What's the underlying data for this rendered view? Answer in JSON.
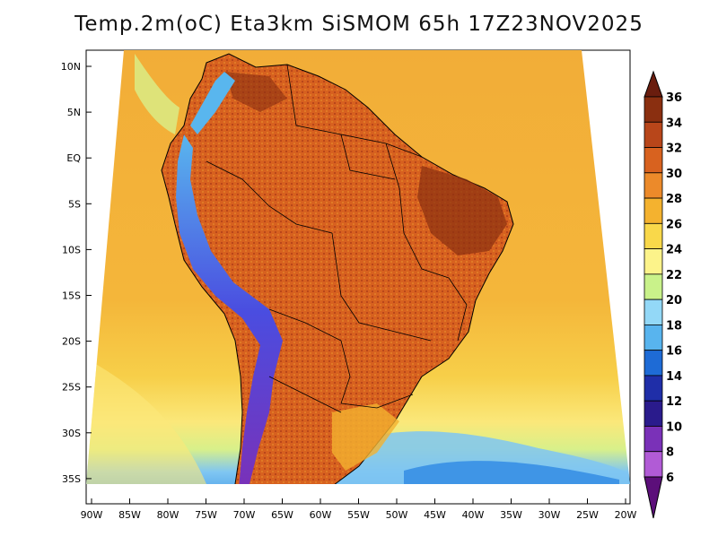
{
  "title": "Temp.2m(oC) Eta3km SiSMOM 65h 17Z23NOV2025",
  "lat_ticks": [
    {
      "label": "10N",
      "lat": 10
    },
    {
      "label": "5N",
      "lat": 5
    },
    {
      "label": "EQ",
      "lat": 0
    },
    {
      "label": "5S",
      "lat": -5
    },
    {
      "label": "10S",
      "lat": -10
    },
    {
      "label": "15S",
      "lat": -15
    },
    {
      "label": "20S",
      "lat": -20
    },
    {
      "label": "25S",
      "lat": -25
    },
    {
      "label": "30S",
      "lat": -30
    },
    {
      "label": "35S",
      "lat": -35
    }
  ],
  "lon_ticks": [
    {
      "label": "90W",
      "lon": -90
    },
    {
      "label": "85W",
      "lon": -85
    },
    {
      "label": "80W",
      "lon": -80
    },
    {
      "label": "75W",
      "lon": -75
    },
    {
      "label": "70W",
      "lon": -70
    },
    {
      "label": "65W",
      "lon": -65
    },
    {
      "label": "60W",
      "lon": -60
    },
    {
      "label": "55W",
      "lon": -55
    },
    {
      "label": "50W",
      "lon": -50
    },
    {
      "label": "45W",
      "lon": -45
    },
    {
      "label": "40W",
      "lon": -40
    },
    {
      "label": "35W",
      "lon": -35
    },
    {
      "label": "30W",
      "lon": -30
    },
    {
      "label": "25W",
      "lon": -25
    },
    {
      "label": "20W",
      "lon": -20
    }
  ],
  "colorbar": {
    "levels": [
      "36",
      "34",
      "32",
      "30",
      "28",
      "26",
      "24",
      "22",
      "20",
      "18",
      "16",
      "14",
      "12",
      "10",
      "8",
      "6"
    ],
    "colors": [
      "#6a1d0e",
      "#8a2f10",
      "#b8461a",
      "#d8621f",
      "#ec8a2a",
      "#f4b22f",
      "#f9d84a",
      "#fcf38a",
      "#c9f28a",
      "#93d8f7",
      "#58b4ee",
      "#1e6bd6",
      "#1f2ea8",
      "#2a1b8c",
      "#7a31b8",
      "#b15bd6",
      "#5c0f7a"
    ]
  },
  "palette": {
    "ocean_warm": "#f2ad38",
    "ocean_mid": "#f7cf49",
    "ocean_cool": "#d8f08a",
    "ocean_cold": "#7fc6f2",
    "ocean_colder": "#3f95e6",
    "land_hot": "#d7611f",
    "land_hotter": "#b9461a",
    "andes_cold": "#4a4de0",
    "andes_cool": "#59b6ee"
  }
}
